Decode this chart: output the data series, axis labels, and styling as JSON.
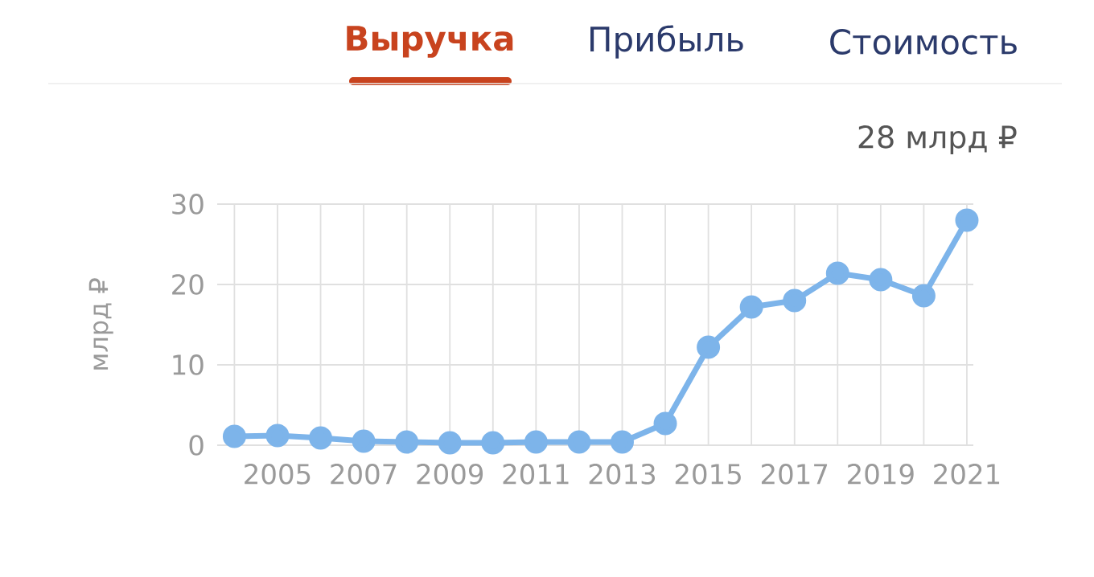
{
  "chart_data": {
    "type": "line",
    "title": "Выручка",
    "subtitle": "28 млрд ₽",
    "annotations": [
      "Прибыль",
      "Стоимость"
    ],
    "ylabel": "млрд ₽",
    "x": [
      2004,
      2005,
      2006,
      2007,
      2008,
      2009,
      2010,
      2011,
      2012,
      2013,
      2014,
      2015,
      2016,
      2017,
      2018,
      2019,
      2020,
      2021
    ],
    "series": [
      {
        "color": "#7db4ea",
        "values": [
          1.1,
          1.2,
          0.9,
          0.5,
          0.4,
          0.3,
          0.3,
          0.4,
          0.4,
          0.4,
          2.7,
          12.2,
          17.2,
          18.0,
          21.4,
          20.6,
          18.6,
          28.0
        ]
      }
    ],
    "xlim": [
      2003.6,
      2021.15
    ],
    "xticks": [
      {
        "value": 2004,
        "label": null
      },
      2005,
      {
        "value": 2006,
        "label": null
      },
      2007,
      {
        "value": 2008,
        "label": null
      },
      2009,
      {
        "value": 2010,
        "label": null
      },
      2011,
      {
        "value": 2012,
        "label": null
      },
      2013,
      {
        "value": 2014,
        "label": null
      },
      2015,
      {
        "value": 2016,
        "label": null
      },
      2017,
      {
        "value": 2018,
        "label": null
      },
      2019,
      {
        "value": 2020,
        "label": null
      },
      2021
    ],
    "ylim": [
      0,
      30
    ],
    "yticks": [
      0,
      10,
      20,
      30
    ],
    "grid": true,
    "marker": "circle",
    "line_style": "solid"
  }
}
